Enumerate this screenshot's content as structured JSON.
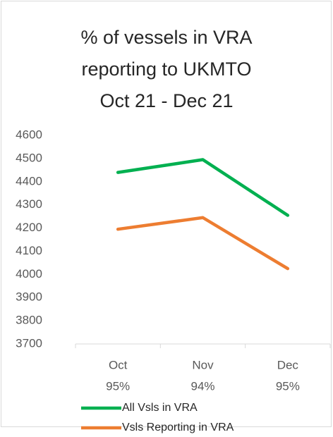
{
  "chart_data": {
    "type": "line",
    "title": [
      "% of vessels in VRA",
      "reporting to UKMTO",
      "Oct 21 - Dec 21"
    ],
    "categories": [
      "Oct",
      "Nov",
      "Dec"
    ],
    "category_sublabels": [
      "95%",
      "94%",
      "95%"
    ],
    "series": [
      {
        "name": "All Vsls in VRA",
        "color": "#00b050",
        "values": [
          4440,
          4495,
          4255
        ]
      },
      {
        "name": "Vsls Reporting in VRA",
        "color": "#ed7d31",
        "values": [
          4195,
          4245,
          4025
        ]
      }
    ],
    "ylim": [
      3700,
      4600
    ],
    "yticks": [
      3700,
      3800,
      3900,
      4000,
      4100,
      4200,
      4300,
      4400,
      4500,
      4600
    ],
    "grid": false,
    "legend": "bottom"
  }
}
